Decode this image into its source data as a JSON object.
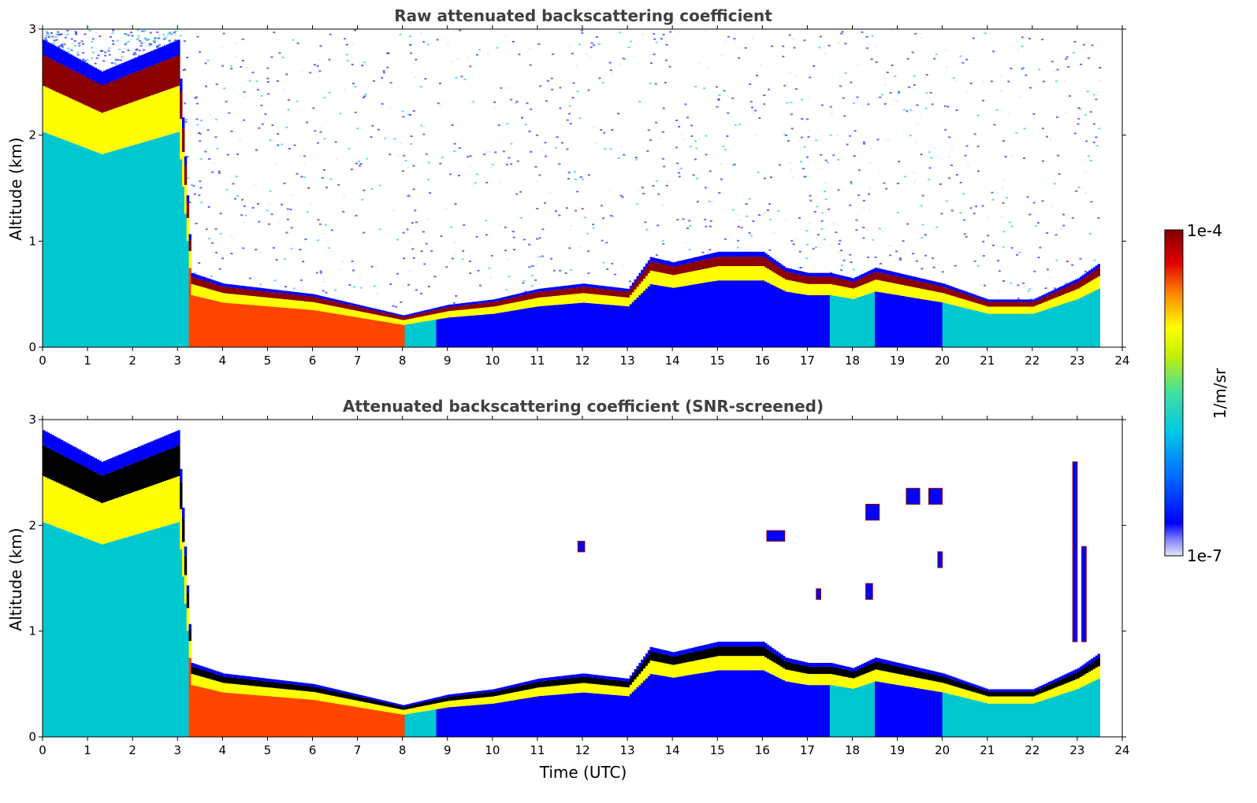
{
  "chart_data": [
    {
      "type": "heatmap",
      "title": "Raw attenuated backscattering coefficient",
      "xlabel": "",
      "ylabel": "Altitude (km)",
      "xlim": [
        0,
        24
      ],
      "ylim": [
        0,
        3
      ],
      "xticks": [
        "0",
        "1",
        "2",
        "3",
        "4",
        "5",
        "6",
        "7",
        "8",
        "9",
        "10",
        "11",
        "12",
        "13",
        "14",
        "15",
        "16",
        "17",
        "18",
        "19",
        "20",
        "21",
        "22",
        "23",
        "24"
      ],
      "yticks": [
        "0",
        "1",
        "2",
        "3"
      ],
      "data_end_time": 23.5,
      "layer_top_km": [
        [
          0,
          2.9
        ],
        [
          1.3,
          2.6
        ],
        [
          3.0,
          2.9
        ],
        [
          3.3,
          0.7
        ],
        [
          4.0,
          0.6
        ],
        [
          6.0,
          0.5
        ],
        [
          7.5,
          0.35
        ],
        [
          8.0,
          0.3
        ],
        [
          9.0,
          0.4
        ],
        [
          10.0,
          0.45
        ],
        [
          11.0,
          0.55
        ],
        [
          12.0,
          0.6
        ],
        [
          13.0,
          0.55
        ],
        [
          13.5,
          0.85
        ],
        [
          14.0,
          0.8
        ],
        [
          15.0,
          0.9
        ],
        [
          16.0,
          0.9
        ],
        [
          16.5,
          0.75
        ],
        [
          17.0,
          0.7
        ],
        [
          17.5,
          0.7
        ],
        [
          18.0,
          0.65
        ],
        [
          18.5,
          0.75
        ],
        [
          19.0,
          0.7
        ],
        [
          20.0,
          0.6
        ],
        [
          21.0,
          0.45
        ],
        [
          22.0,
          0.45
        ],
        [
          23.0,
          0.65
        ],
        [
          23.5,
          0.8
        ]
      ],
      "noise": "high noise above boundary layer"
    },
    {
      "type": "heatmap",
      "title": "Attenuated backscattering coefficient (SNR-screened)",
      "xlabel": "Time (UTC)",
      "ylabel": "Altitude (km)",
      "xlim": [
        0,
        24
      ],
      "ylim": [
        0,
        3
      ],
      "xticks": [
        "0",
        "1",
        "2",
        "3",
        "4",
        "5",
        "6",
        "7",
        "8",
        "9",
        "10",
        "11",
        "12",
        "13",
        "14",
        "15",
        "16",
        "17",
        "18",
        "19",
        "20",
        "21",
        "22",
        "23",
        "24"
      ],
      "yticks": [
        "0",
        "1",
        "2",
        "3"
      ],
      "data_end_time": 23.5,
      "layer_top_km": [
        [
          0,
          2.9
        ],
        [
          1.3,
          2.6
        ],
        [
          3.0,
          2.9
        ],
        [
          3.3,
          0.7
        ],
        [
          4.0,
          0.6
        ],
        [
          6.0,
          0.5
        ],
        [
          7.5,
          0.35
        ],
        [
          8.0,
          0.3
        ],
        [
          9.0,
          0.4
        ],
        [
          10.0,
          0.45
        ],
        [
          11.0,
          0.55
        ],
        [
          12.0,
          0.6
        ],
        [
          13.0,
          0.55
        ],
        [
          13.5,
          0.85
        ],
        [
          14.0,
          0.8
        ],
        [
          15.0,
          0.9
        ],
        [
          16.0,
          0.9
        ],
        [
          16.5,
          0.75
        ],
        [
          17.0,
          0.7
        ],
        [
          17.5,
          0.7
        ],
        [
          18.0,
          0.65
        ],
        [
          18.5,
          0.75
        ],
        [
          19.0,
          0.7
        ],
        [
          20.0,
          0.6
        ],
        [
          21.0,
          0.45
        ],
        [
          22.0,
          0.45
        ],
        [
          23.0,
          0.65
        ],
        [
          23.5,
          0.8
        ]
      ],
      "clouds": [
        {
          "t0": 11.9,
          "t1": 12.05,
          "z0": 1.75,
          "z1": 1.85
        },
        {
          "t0": 16.1,
          "t1": 16.5,
          "z0": 1.85,
          "z1": 1.95
        },
        {
          "t0": 18.3,
          "t1": 18.6,
          "z0": 2.05,
          "z1": 2.2
        },
        {
          "t0": 19.2,
          "t1": 19.5,
          "z0": 2.2,
          "z1": 2.35
        },
        {
          "t0": 19.7,
          "t1": 20.0,
          "z0": 2.2,
          "z1": 2.35
        },
        {
          "t0": 19.9,
          "t1": 20.0,
          "z0": 1.6,
          "z1": 1.75
        },
        {
          "t0": 17.2,
          "t1": 17.3,
          "z0": 1.3,
          "z1": 1.4
        },
        {
          "t0": 18.3,
          "t1": 18.45,
          "z0": 1.3,
          "z1": 1.45
        },
        {
          "t0": 22.9,
          "t1": 23.0,
          "z0": 0.9,
          "z1": 2.6
        },
        {
          "t0": 23.1,
          "t1": 23.2,
          "z0": 0.9,
          "z1": 1.8
        }
      ],
      "noise": "screened (white above boundary layer)"
    }
  ],
  "colorbar": {
    "label": "1/m/sr",
    "max_label": "1e-4",
    "min_label": "1e-7",
    "colormap": "jet"
  },
  "colors": {
    "strong": "#8b0000",
    "high": "#ff4500",
    "mid": "#ffff00",
    "low": "#00c8d0",
    "weak": "#0000ff",
    "min": "#e0e0f8",
    "screened": "#000000"
  }
}
